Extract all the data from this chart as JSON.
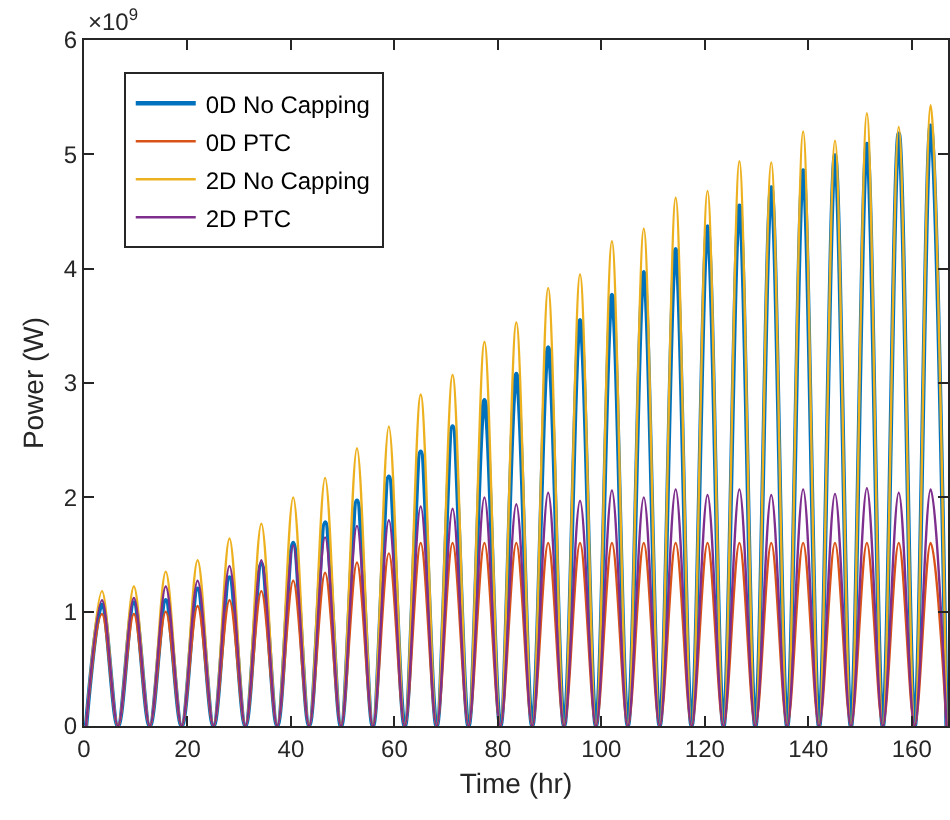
{
  "chart_data": {
    "type": "line",
    "xlabel": "Time (hr)",
    "ylabel": "Power (W)",
    "annotations": [
      "×10$^{9}$"
    ],
    "x": [
      0.4,
      3.48,
      6.56,
      9.64,
      12.72,
      15.8,
      18.88,
      21.96,
      25.04,
      28.12,
      31.2,
      34.28,
      37.36,
      40.44,
      43.52,
      46.6,
      49.68,
      52.76,
      55.84,
      58.92,
      62,
      65.08,
      68.16,
      71.24,
      74.32,
      77.4,
      80.48,
      83.56,
      86.64,
      89.72,
      92.8,
      95.88,
      98.96,
      102.04,
      105.12,
      108.2,
      111.28,
      114.36,
      117.44,
      120.52,
      123.6,
      126.68,
      129.76,
      132.84,
      135.92,
      139,
      142.08,
      145.16,
      148.24,
      151.32,
      154.4,
      157.48,
      160.56,
      163.64,
      166.72
    ],
    "series": [
      {
        "name": "0D No Capping",
        "color": "#0072bd",
        "values": [
          0,
          1.06,
          0,
          1.08,
          0,
          1.1,
          0,
          1.2,
          0,
          1.3,
          0,
          1.42,
          0,
          1.6,
          0,
          1.78,
          0,
          1.97,
          0,
          2.18,
          0,
          2.4,
          0,
          2.62,
          0,
          2.85,
          0,
          3.08,
          0,
          3.31,
          0,
          3.55,
          0,
          3.77,
          0,
          3.97,
          0,
          4.17,
          0,
          4.37,
          0,
          4.55,
          0,
          4.71,
          0,
          4.86,
          0,
          4.99,
          0,
          5.09,
          0,
          5.18,
          0,
          5.25,
          0
        ]
      },
      {
        "name": "0D PTC",
        "color": "#d95319",
        "values": [
          0,
          0.98,
          0,
          0.98,
          0,
          1.0,
          0,
          1.05,
          0,
          1.1,
          0,
          1.18,
          0,
          1.27,
          0,
          1.34,
          0,
          1.43,
          0,
          1.51,
          0,
          1.6,
          0,
          1.6,
          0,
          1.6,
          0,
          1.6,
          0,
          1.6,
          0,
          1.6,
          0,
          1.6,
          0,
          1.6,
          0,
          1.6,
          0,
          1.6,
          0,
          1.6,
          0,
          1.6,
          0,
          1.6,
          0,
          1.6,
          0,
          1.6,
          0,
          1.6,
          0,
          1.6,
          0
        ]
      },
      {
        "name": "2D No Capping",
        "color": "#edb120",
        "values": [
          0,
          1.18,
          0,
          1.22,
          0,
          1.35,
          0,
          1.45,
          0,
          1.64,
          0,
          1.77,
          0,
          2.0,
          0,
          2.17,
          0,
          2.43,
          0,
          2.62,
          0,
          2.9,
          0,
          3.07,
          0,
          3.36,
          0,
          3.53,
          0,
          3.83,
          0,
          3.95,
          0,
          4.24,
          0,
          4.35,
          0,
          4.62,
          0,
          4.68,
          0,
          4.94,
          0,
          4.93,
          0,
          5.2,
          0,
          5.12,
          0,
          5.36,
          0,
          5.24,
          0,
          5.43,
          0
        ]
      },
      {
        "name": "2D PTC",
        "color": "#7e2f8e",
        "values": [
          0,
          1.1,
          0,
          1.12,
          0,
          1.22,
          0,
          1.27,
          0,
          1.4,
          0,
          1.45,
          0,
          1.58,
          0,
          1.65,
          0,
          1.75,
          0,
          1.8,
          0,
          1.92,
          0,
          1.9,
          0,
          2.0,
          0,
          1.94,
          0,
          2.04,
          0,
          1.97,
          0,
          2.06,
          0,
          2.0,
          0,
          2.07,
          0,
          2.02,
          0,
          2.07,
          0,
          2.02,
          0,
          2.07,
          0,
          2.03,
          0,
          2.08,
          0,
          2.04,
          0,
          2.07,
          0
        ]
      }
    ],
    "xlim": [
      0,
      167
    ],
    "xticks": [
      0,
      20,
      40,
      60,
      80,
      100,
      120,
      140,
      160
    ],
    "ylim": [
      0,
      6
    ],
    "yticks": [
      0,
      1,
      2,
      3,
      4,
      5,
      6
    ],
    "grid": false,
    "legend": "top left",
    "marker": "none",
    "line_style": "solid"
  }
}
